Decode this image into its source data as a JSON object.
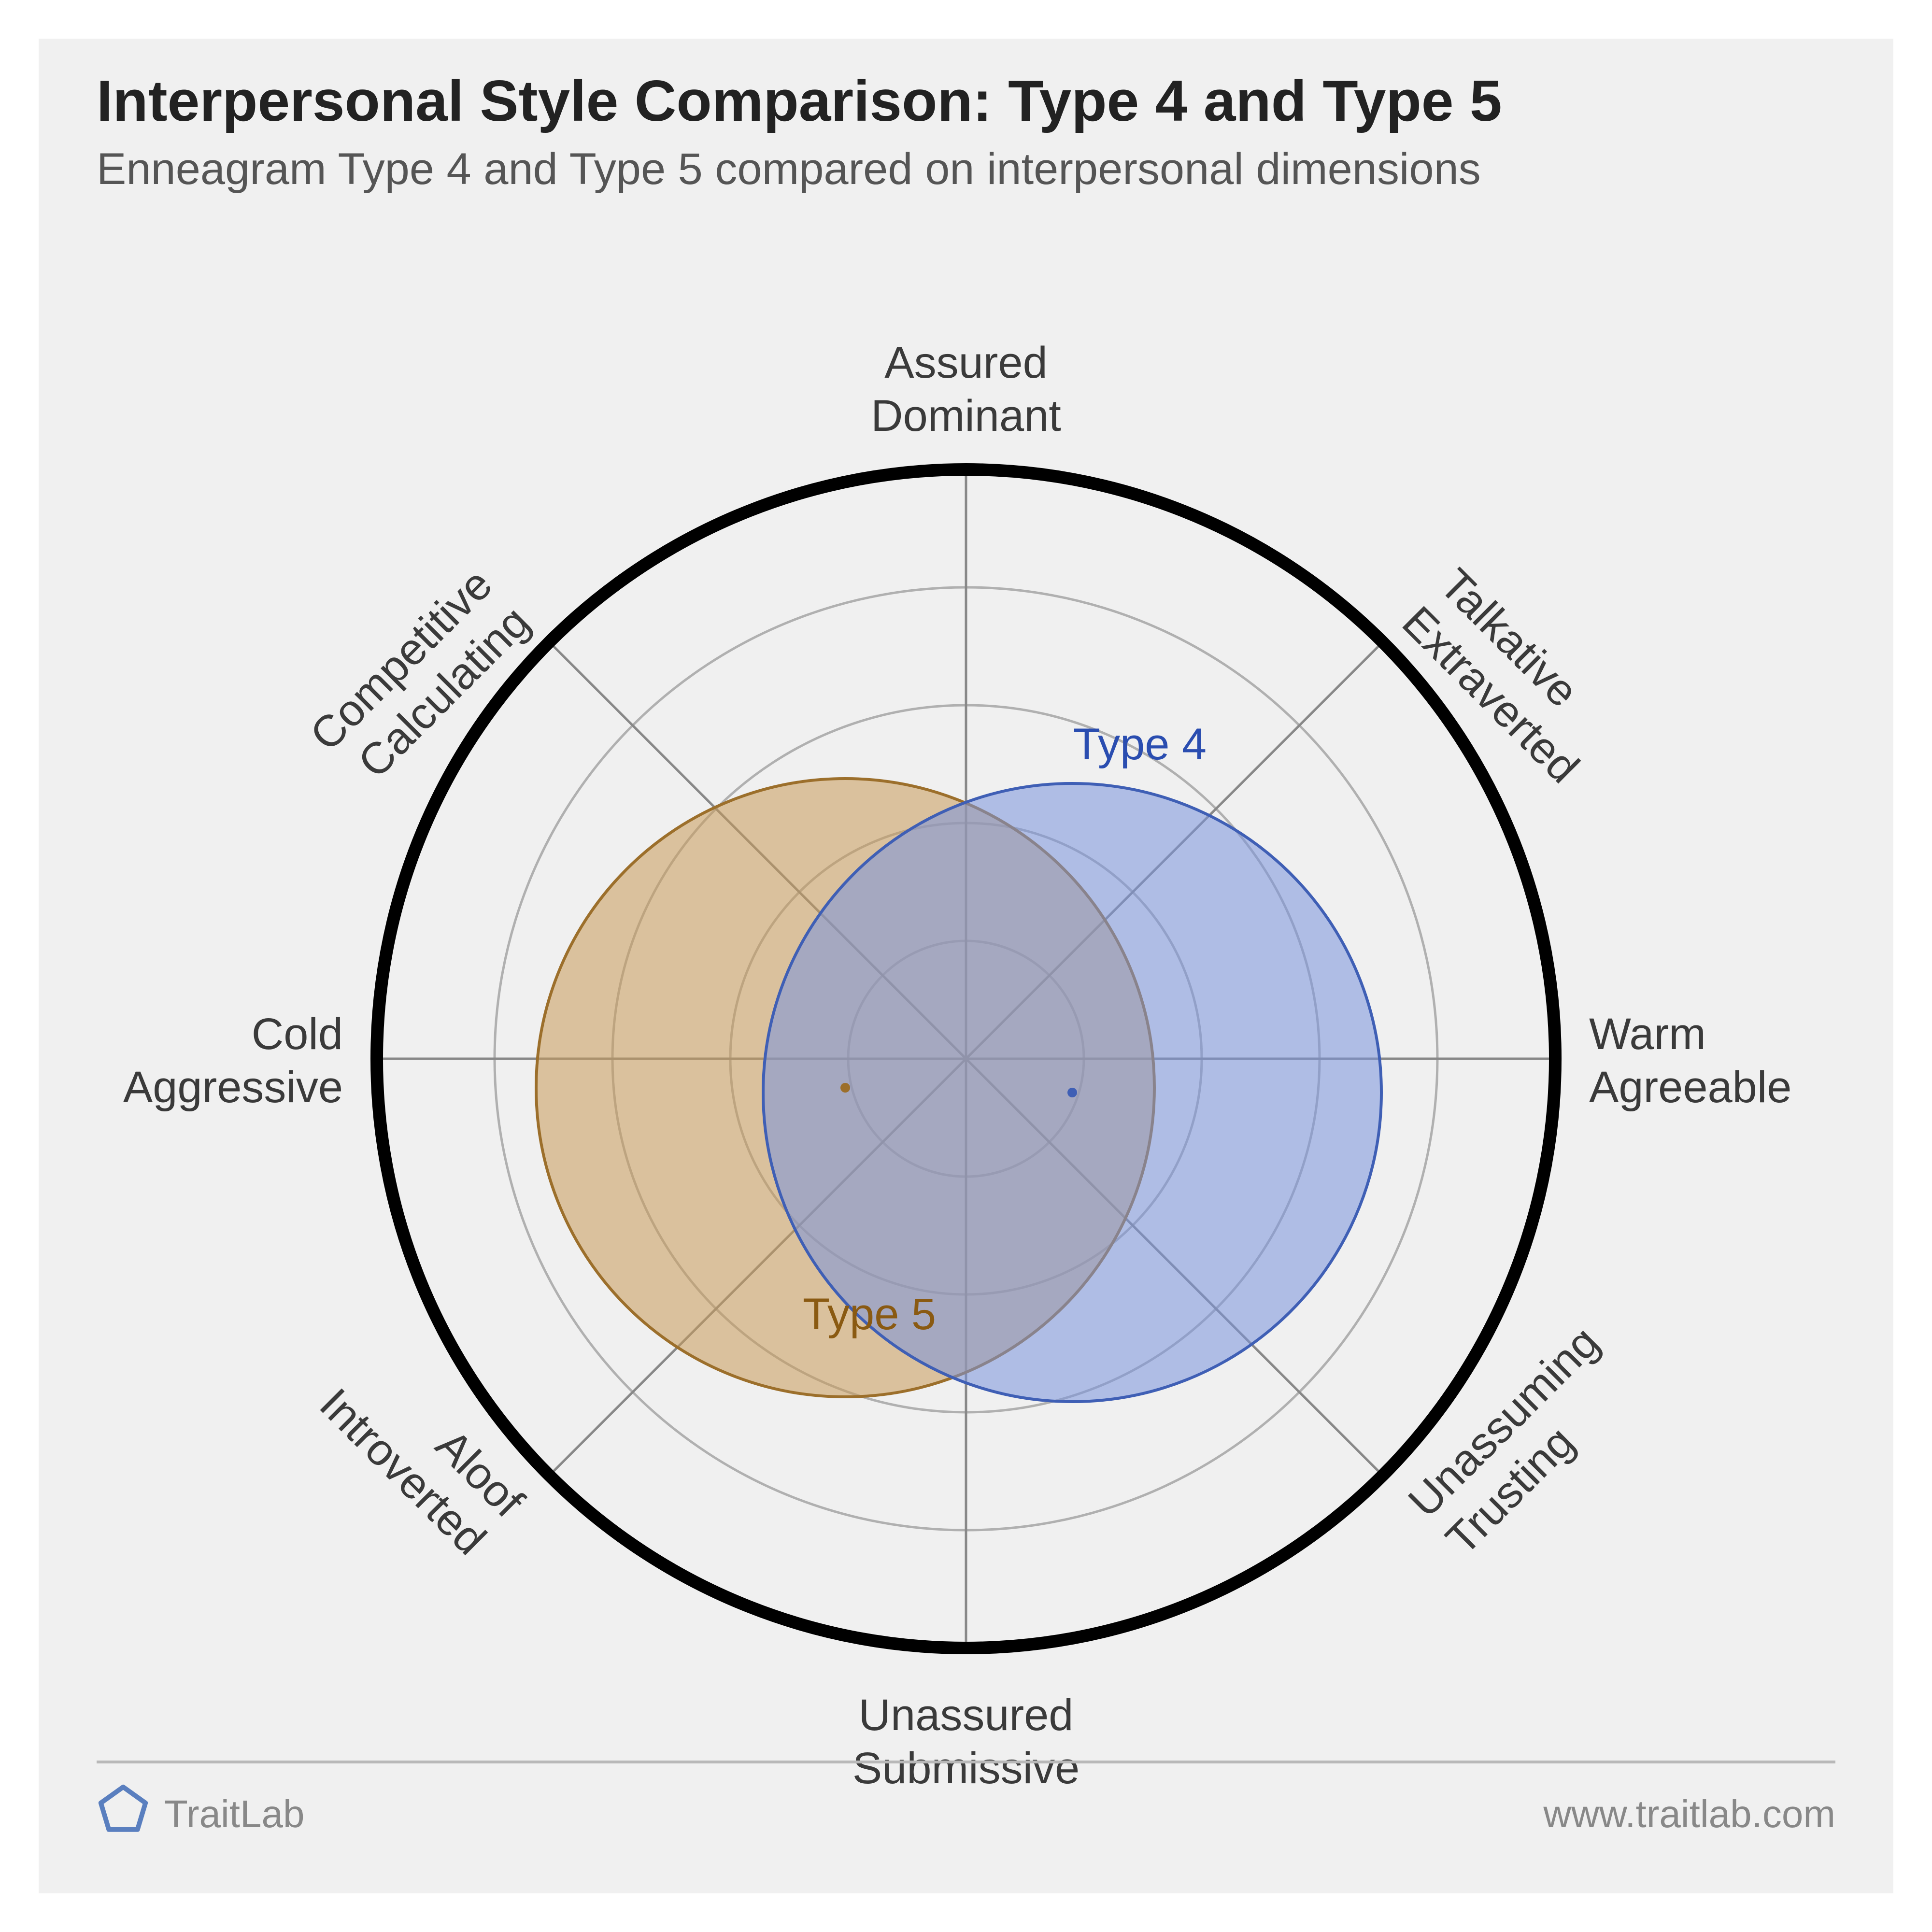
{
  "header": {
    "title": "Interpersonal Style Comparison: Type 4 and Type 5",
    "subtitle": "Enneagram Type 4 and Type 5 compared on interpersonal dimensions"
  },
  "chart": {
    "type": "circumplex",
    "background_color": "#f0f0f0",
    "outer_ring": {
      "radius": 1220,
      "stroke": "#000000",
      "stroke_width": 26
    },
    "grid": {
      "ring_radii": [
        244,
        488,
        732,
        976,
        1220
      ],
      "ring_stroke": "#b0b0b0",
      "ring_stroke_width": 5,
      "spoke_angles_deg": [
        0,
        45,
        90,
        135,
        180,
        225,
        270,
        315
      ],
      "spoke_stroke": "#888888",
      "spoke_stroke_width": 5
    },
    "axis_labels": [
      {
        "angle_deg": 90,
        "lines": [
          "Assured",
          "Dominant"
        ],
        "rotate": 0,
        "anchor": "middle"
      },
      {
        "angle_deg": 45,
        "lines": [
          "Talkative",
          "Extraverted"
        ],
        "rotate": 45,
        "anchor": "start"
      },
      {
        "angle_deg": 0,
        "lines": [
          "Warm",
          "Agreeable"
        ],
        "rotate": 0,
        "anchor": "start"
      },
      {
        "angle_deg": 315,
        "lines": [
          "Unassuming",
          "Trusting"
        ],
        "rotate": -45,
        "anchor": "start"
      },
      {
        "angle_deg": 270,
        "lines": [
          "Unassured",
          "Submissive"
        ],
        "rotate": 0,
        "anchor": "middle"
      },
      {
        "angle_deg": 225,
        "lines": [
          "Aloof",
          "Introverted"
        ],
        "rotate": 45,
        "anchor": "end"
      },
      {
        "angle_deg": 180,
        "lines": [
          "Cold",
          "Aggressive"
        ],
        "rotate": 0,
        "anchor": "end"
      },
      {
        "angle_deg": 135,
        "lines": [
          "Competitive",
          "Calculating"
        ],
        "rotate": -45,
        "anchor": "end"
      }
    ],
    "series": [
      {
        "name": "Type 5",
        "label": "Type 5",
        "cx": -250,
        "cy": -60,
        "r": 640,
        "fill": "#c99b5a",
        "fill_opacity": 0.55,
        "stroke": "#9c6f2b",
        "stroke_width": 6,
        "label_color": "#8a5a12",
        "label_x": -200,
        "label_y": -560,
        "dot_color": "#9c6f2b"
      },
      {
        "name": "Type 4",
        "label": "Type 4",
        "cx": 220,
        "cy": -70,
        "r": 640,
        "fill": "#7a94dc",
        "fill_opacity": 0.55,
        "stroke": "#3f5fb5",
        "stroke_width": 6,
        "label_color": "#2a4db0",
        "label_x": 360,
        "label_y": 620,
        "dot_color": "#3f5fb5"
      }
    ]
  },
  "footer": {
    "brand": "TraitLab",
    "brand_color": "#888888",
    "logo_stroke": "#5a7fbf",
    "url": "www.traitlab.com"
  }
}
